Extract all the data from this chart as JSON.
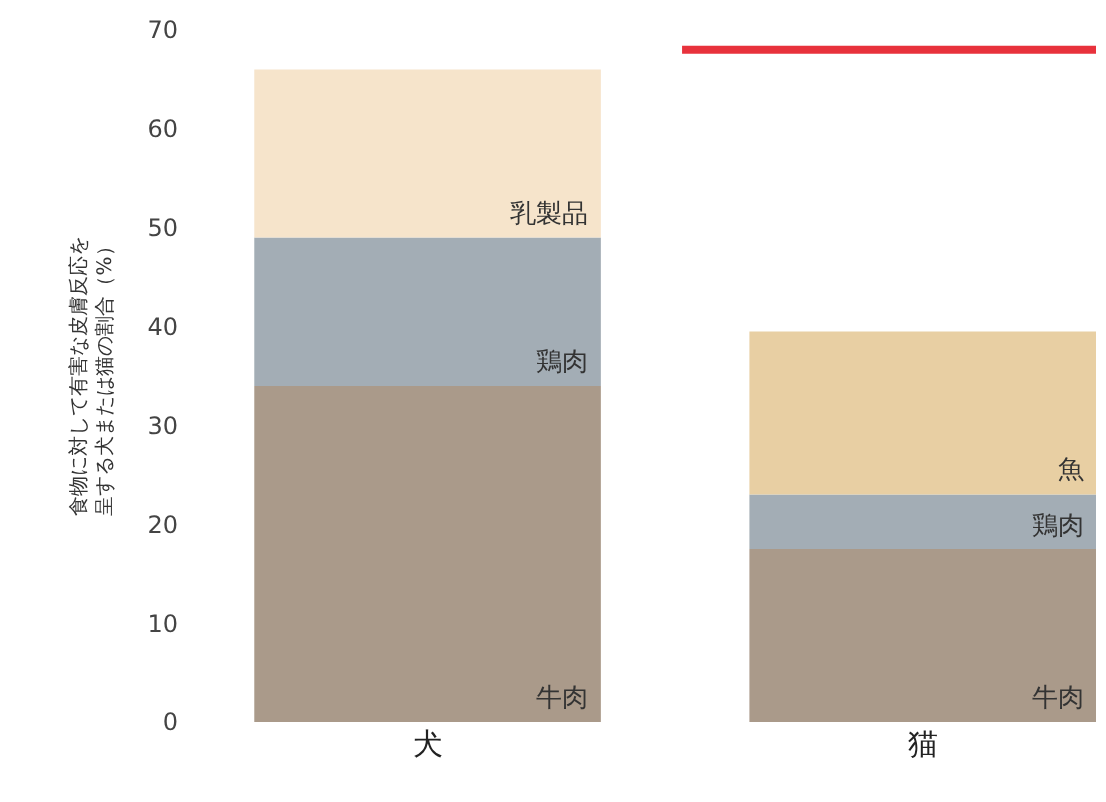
{
  "chart_data": {
    "type": "bar",
    "stacked": true,
    "ylabel": "食物に対して有害な皮膚反応を呈する犬または猫の割合（%）",
    "categories": [
      "犬",
      "猫"
    ],
    "series": [
      {
        "name": "牛肉",
        "color": "#aa9a8a",
        "values": [
          34,
          17.5
        ]
      },
      {
        "name": "鶏肉",
        "color": "#a3adb5",
        "values": [
          15,
          5.5
        ]
      },
      {
        "name": "乳製品",
        "color": "#f6e4cb",
        "values": [
          17,
          null
        ]
      },
      {
        "name": "魚",
        "color": "#e8cfa3",
        "values": [
          null,
          16.5
        ]
      }
    ],
    "ylim": [
      0,
      70
    ],
    "yticks": [
      0,
      10,
      20,
      30,
      40,
      50,
      60,
      70
    ],
    "legend": false,
    "ref_lines": [
      {
        "axis": "y",
        "value": 68,
        "color": "#e8323c"
      }
    ]
  }
}
